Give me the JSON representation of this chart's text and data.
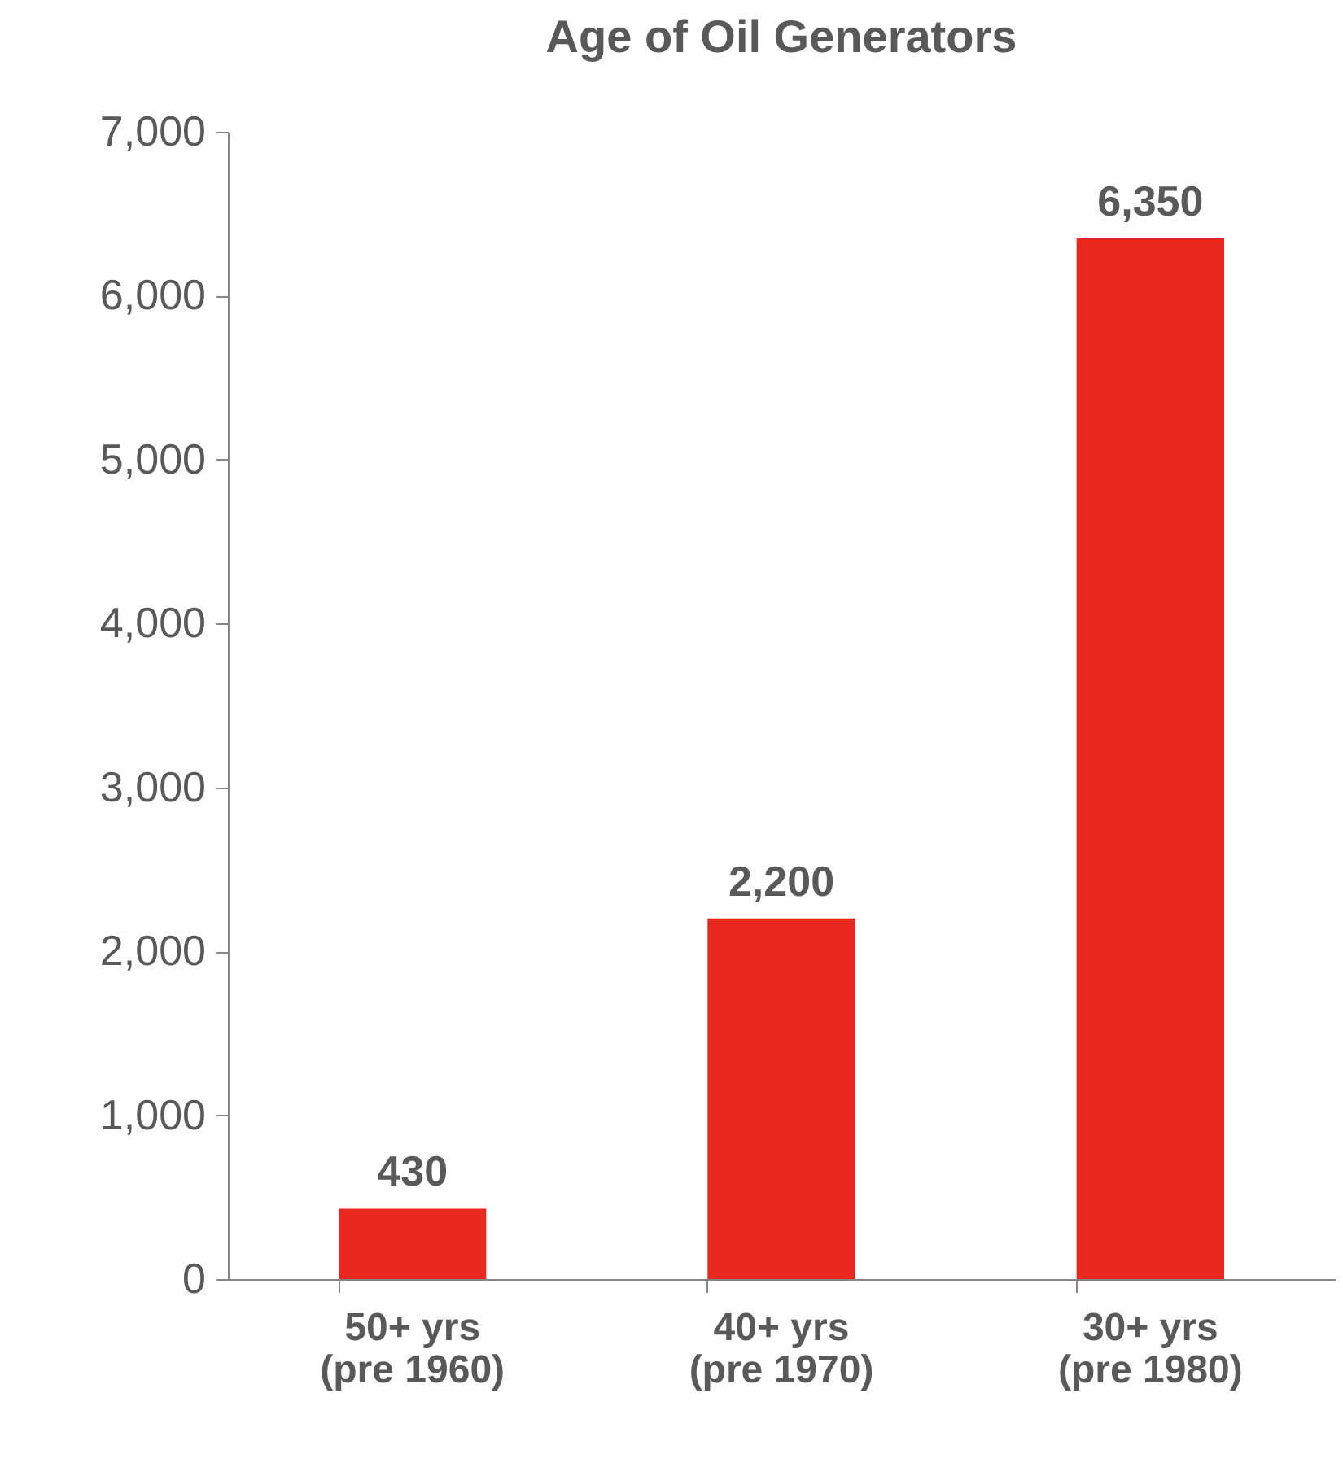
{
  "chart_data": {
    "type": "bar",
    "title": "Age of Oil Generators",
    "categories": [
      "50+ yrs\n(pre 1960)",
      "40+ yrs\n(pre 1970)",
      "30+ yrs\n(pre 1980)"
    ],
    "values": [
      430,
      2200,
      6350
    ],
    "color": "#e8281e",
    "value_labels": [
      "430",
      "2,200",
      "6,350"
    ],
    "ylim": [
      0,
      7000
    ],
    "yticks": [
      0,
      {
        "value": 1000,
        "label": "1,000"
      },
      {
        "value": 2000,
        "label": "2,000"
      },
      {
        "value": 3000,
        "label": "3,000"
      },
      {
        "value": 4000,
        "label": "4,000"
      },
      {
        "value": 5000,
        "label": "5,000"
      },
      {
        "value": 6000,
        "label": "6,000"
      },
      {
        "value": 7000,
        "label": "7,000"
      }
    ],
    "grid": false
  }
}
